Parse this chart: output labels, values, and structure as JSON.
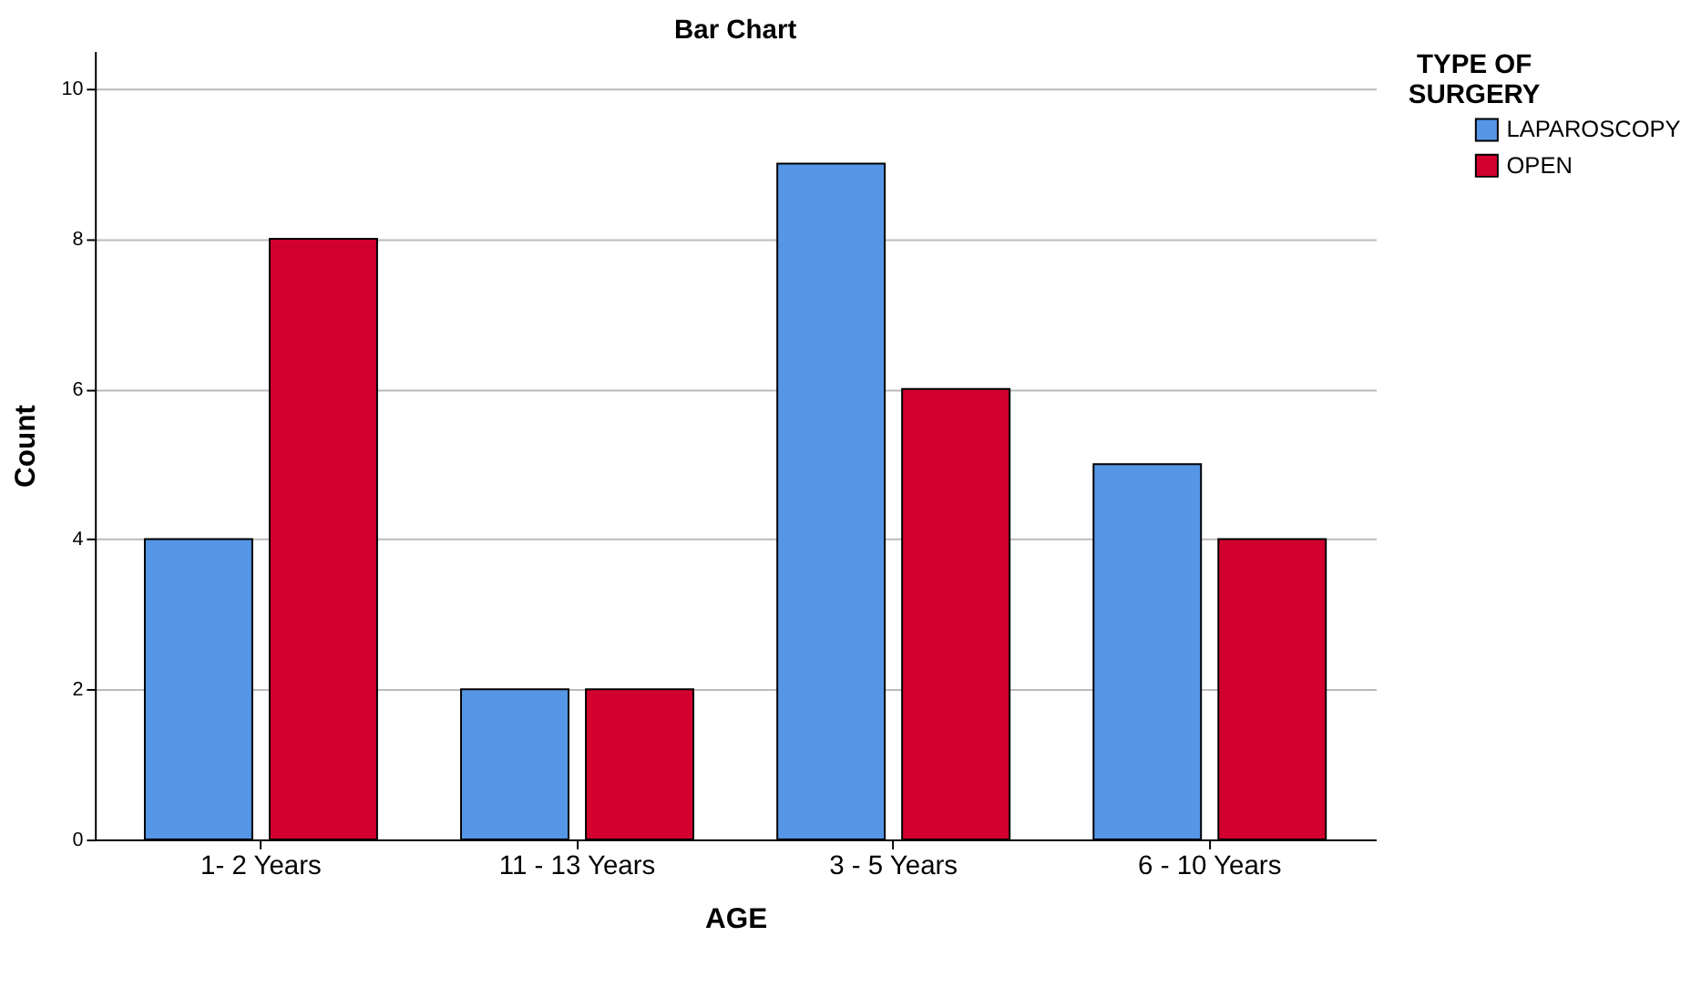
{
  "chart_data": {
    "type": "bar",
    "title": "Bar Chart",
    "xlabel": "AGE",
    "ylabel": "Count",
    "legend_title": "TYPE OF SURGERY",
    "categories": [
      "1- 2 Years",
      "11 - 13 Years",
      "3 - 5 Years",
      "6 - 10 Years"
    ],
    "series": [
      {
        "name": "LAPAROSCOPY",
        "color": "#5596e6",
        "values": [
          4,
          2,
          9,
          5
        ]
      },
      {
        "name": "OPEN",
        "color": "#d2002e",
        "values": [
          8,
          2,
          6,
          4
        ]
      }
    ],
    "ylim": [
      0,
      10.5
    ],
    "yticks": [
      0,
      2,
      4,
      6,
      8,
      10
    ],
    "grid": "y",
    "legend": "top right"
  }
}
